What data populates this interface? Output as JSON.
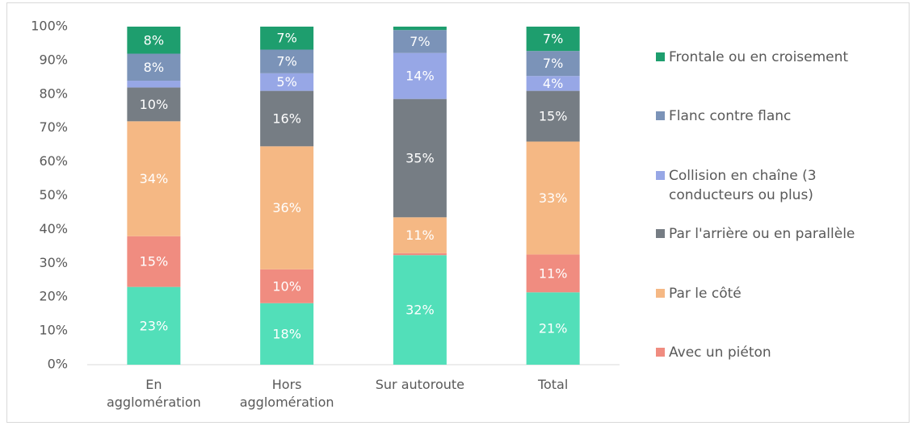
{
  "chart_data": {
    "type": "stacked_bar",
    "categories": [
      "En agglomération",
      "Hors agglomération",
      "Sur autoroute",
      "Total"
    ],
    "series": [
      {
        "name": null,
        "color": "#52dfb9",
        "values": [
          23,
          18.2,
          32.4,
          21.4
        ],
        "value_labels": [
          "23%",
          "18%",
          "32%",
          "21%"
        ]
      },
      {
        "name": "Avec un piéton",
        "color": "#f08c80",
        "values": [
          15,
          10,
          0.6,
          11.2
        ],
        "value_labels": [
          "15%",
          "10%",
          null,
          "11%"
        ]
      },
      {
        "name": "Par le côté",
        "color": "#f5b884",
        "values": [
          34,
          36.4,
          10.6,
          33.4
        ],
        "value_labels": [
          "34%",
          "36%",
          "11%",
          "33%"
        ]
      },
      {
        "name": "Par l'arrière ou en parallèle",
        "color": "#767d84",
        "values": [
          10,
          16.4,
          35,
          15
        ],
        "value_labels": [
          "10%",
          "16%",
          "35%",
          "15%"
        ]
      },
      {
        "name": "Collision en chaîne (3 conducteurs ou plus)",
        "color": "#97a7e6",
        "values": [
          2,
          5.2,
          13.6,
          4.4
        ],
        "value_labels": [
          null,
          "5%",
          "14%",
          "4%"
        ]
      },
      {
        "name": "Flanc contre flanc",
        "color": "#7b93b8",
        "values": [
          8,
          7,
          6.8,
          7.4
        ],
        "value_labels": [
          "8%",
          "7%",
          "7%",
          "7%"
        ]
      },
      {
        "name": "Frontale ou en croisement",
        "color": "#1e9e6e",
        "values": [
          8,
          6.8,
          1,
          7.2
        ],
        "value_labels": [
          "8%",
          "7%",
          null,
          "7%"
        ]
      }
    ],
    "ylim": [
      0,
      100
    ],
    "yticks": [
      {
        "value": 0,
        "label": "0%"
      },
      {
        "value": 10,
        "label": "10%"
      },
      {
        "value": 20,
        "label": "20%"
      },
      {
        "value": 30,
        "label": "30%"
      },
      {
        "value": 40,
        "label": "40%"
      },
      {
        "value": 50,
        "label": "50%"
      },
      {
        "value": 60,
        "label": "60%"
      },
      {
        "value": 70,
        "label": "70%"
      },
      {
        "value": 80,
        "label": "80%"
      },
      {
        "value": 90,
        "label": "90%"
      },
      {
        "value": 100,
        "label": "100%"
      }
    ],
    "grid": false,
    "legend": "right"
  }
}
